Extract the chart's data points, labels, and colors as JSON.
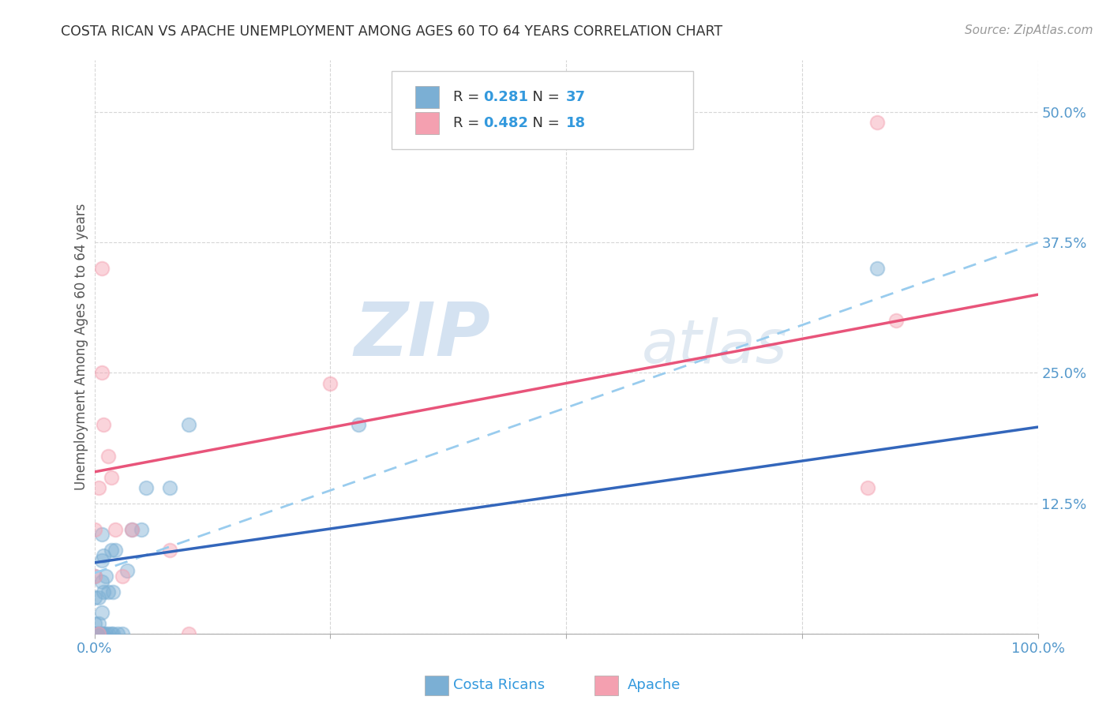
{
  "title": "COSTA RICAN VS APACHE UNEMPLOYMENT AMONG AGES 60 TO 64 YEARS CORRELATION CHART",
  "source": "Source: ZipAtlas.com",
  "ylabel": "Unemployment Among Ages 60 to 64 years",
  "xlim": [
    0.0,
    1.0
  ],
  "ylim": [
    0.0,
    0.55
  ],
  "xticks": [
    0.0,
    0.25,
    0.5,
    0.75,
    1.0
  ],
  "xtick_labels": [
    "0.0%",
    "",
    "",
    "",
    "100.0%"
  ],
  "yticks": [
    0.0,
    0.125,
    0.25,
    0.375,
    0.5
  ],
  "ytick_labels": [
    "",
    "12.5%",
    "25.0%",
    "37.5%",
    "50.0%"
  ],
  "background_color": "#ffffff",
  "grid_color": "#cccccc",
  "watermark_zip": "ZIP",
  "watermark_atlas": "atlas",
  "legend_R1": "0.281",
  "legend_N1": "37",
  "legend_R2": "0.482",
  "legend_N2": "18",
  "costa_rican_color": "#7bafd4",
  "apache_color": "#f4a0b0",
  "costa_rican_line_color": "#3366bb",
  "apache_line_color": "#e8547a",
  "dashed_line_color": "#99ccee",
  "costa_rican_x": [
    0.0,
    0.0,
    0.0,
    0.0,
    0.0,
    0.005,
    0.005,
    0.005,
    0.005,
    0.008,
    0.008,
    0.008,
    0.008,
    0.008,
    0.008,
    0.01,
    0.01,
    0.01,
    0.012,
    0.012,
    0.015,
    0.015,
    0.018,
    0.018,
    0.02,
    0.02,
    0.022,
    0.025,
    0.03,
    0.035,
    0.04,
    0.05,
    0.055,
    0.08,
    0.1,
    0.28,
    0.83
  ],
  "costa_rican_y": [
    0.0,
    0.0,
    0.01,
    0.035,
    0.055,
    0.0,
    0.0,
    0.01,
    0.035,
    0.0,
    0.0,
    0.02,
    0.05,
    0.07,
    0.095,
    0.0,
    0.04,
    0.075,
    0.0,
    0.055,
    0.0,
    0.04,
    0.0,
    0.08,
    0.0,
    0.04,
    0.08,
    0.0,
    0.0,
    0.06,
    0.1,
    0.1,
    0.14,
    0.14,
    0.2,
    0.2,
    0.35
  ],
  "apache_x": [
    0.0,
    0.0,
    0.005,
    0.005,
    0.008,
    0.008,
    0.01,
    0.015,
    0.018,
    0.022,
    0.03,
    0.04,
    0.08,
    0.1,
    0.25,
    0.82,
    0.83,
    0.85
  ],
  "apache_y": [
    0.055,
    0.1,
    0.0,
    0.14,
    0.25,
    0.35,
    0.2,
    0.17,
    0.15,
    0.1,
    0.055,
    0.1,
    0.08,
    0.0,
    0.24,
    0.14,
    0.49,
    0.3
  ],
  "cr_trend_start_y": 0.068,
  "cr_trend_end_y": 0.198,
  "ap_trend_start_y": 0.155,
  "ap_trend_end_y": 0.325,
  "dash_trend_start_y": 0.058,
  "dash_trend_end_y": 0.375
}
